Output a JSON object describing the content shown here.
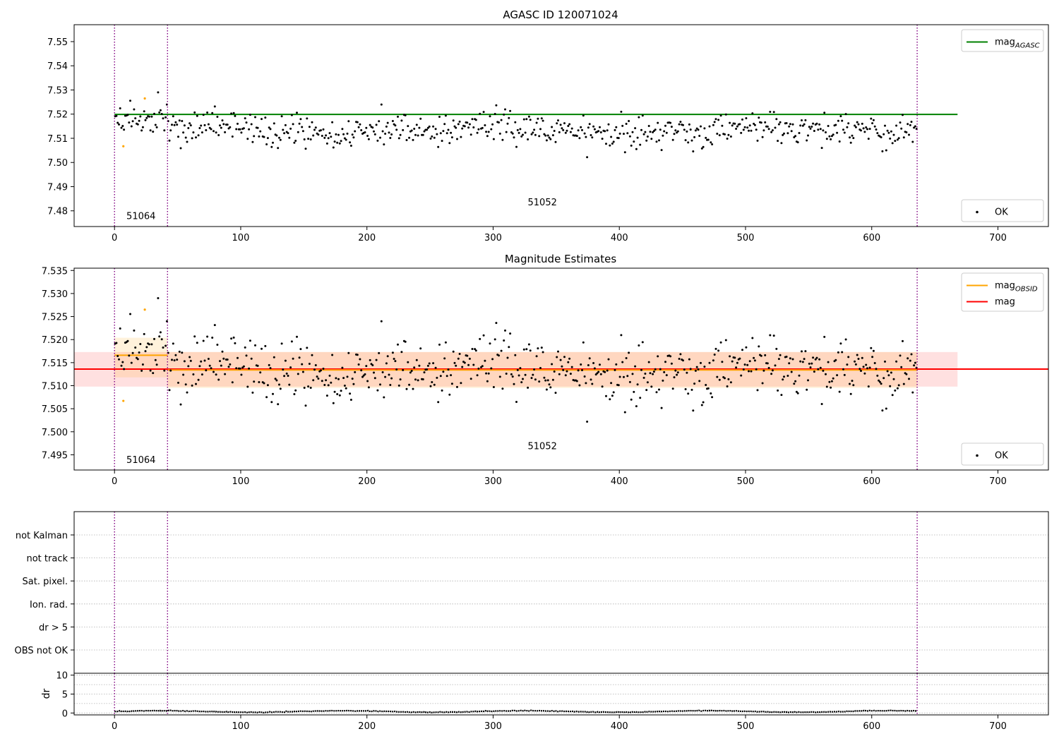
{
  "chart_data": [
    {
      "id": "agasc",
      "type": "scatter",
      "title": "AGASC ID 120071024",
      "xlabel": "",
      "ylabel": "",
      "xlim": [
        -32,
        740
      ],
      "ylim": [
        7.4735,
        7.557
      ],
      "xticks": [
        0,
        100,
        200,
        300,
        400,
        500,
        600,
        700
      ],
      "yticks": [
        7.48,
        7.49,
        7.5,
        7.51,
        7.52,
        7.53,
        7.54,
        7.55
      ],
      "y_tick_decimals": 2,
      "grid": false,
      "reference_lines": [
        {
          "name": "mag_AGASC",
          "y": 7.5199,
          "x_range": [
            0,
            668
          ],
          "color": "#008000"
        }
      ],
      "obsid_boundaries": [
        0,
        42,
        636
      ],
      "obsid_labels": [
        {
          "text": "51064",
          "x": 21,
          "y": 7.4765
        },
        {
          "text": "51052",
          "x": 339,
          "y": 7.4823
        }
      ],
      "point_groups": [
        {
          "name": "OK",
          "color": "#000000",
          "segments": [
            {
              "x0": 0,
              "x1": 42,
              "mean": 7.5167,
              "sd": 0.0045
            },
            {
              "x0": 42,
              "x1": 636,
              "mean": 7.5134,
              "sd": 0.0044
            }
          ]
        },
        {
          "name": "",
          "color": "#FFA500",
          "points": [
            [
              7,
              7.5067
            ],
            [
              24,
              7.5265
            ]
          ]
        }
      ],
      "legends": [
        {
          "position": "upper right",
          "entries": [
            {
              "kind": "line",
              "color": "#008000",
              "label": "mag",
              "sub": "AGASC"
            }
          ]
        },
        {
          "position": "lower right",
          "entries": [
            {
              "kind": "point",
              "color": "#000000",
              "label": "OK",
              "sub": ""
            }
          ]
        }
      ]
    },
    {
      "id": "estimates",
      "type": "scatter",
      "title": "Magnitude Estimates",
      "xlabel": "",
      "ylabel": "",
      "xlim": [
        -32,
        740
      ],
      "ylim": [
        7.4917,
        7.5355
      ],
      "xticks": [
        0,
        100,
        200,
        300,
        400,
        500,
        600,
        700
      ],
      "yticks": [
        7.495,
        7.5,
        7.505,
        7.51,
        7.515,
        7.52,
        7.525,
        7.53,
        7.535
      ],
      "y_tick_decimals": 3,
      "grid": false,
      "bands": [
        {
          "name": "mag",
          "x_range": [
            -32,
            668
          ],
          "low": 7.5098,
          "high": 7.5173,
          "color": "#FF0000",
          "opacity": 0.12
        },
        {
          "name": "mag_OBSID 51064",
          "x_range": [
            0,
            42
          ],
          "low": 7.5118,
          "high": 7.5204,
          "color": "#FFA500",
          "opacity": 0.14
        },
        {
          "name": "mag_OBSID 51052",
          "x_range": [
            42,
            636
          ],
          "low": 7.5095,
          "high": 7.5173,
          "color": "#FFA500",
          "opacity": 0.14
        }
      ],
      "reference_lines": [
        {
          "name": "mag",
          "y": 7.5136,
          "x_range": [
            -32,
            740
          ],
          "color": "#FF0000"
        },
        {
          "name": "mag_OBSID 51064",
          "y": 7.5166,
          "x_range": [
            0,
            42
          ],
          "color": "#FFA500"
        },
        {
          "name": "mag_OBSID 51052",
          "y": 7.5134,
          "x_range": [
            42,
            636
          ],
          "color": "#FFA500"
        }
      ],
      "obsid_boundaries": [
        0,
        42,
        636
      ],
      "obsid_labels": [
        {
          "text": "51064",
          "x": 21,
          "y": 7.4932
        },
        {
          "text": "51052",
          "x": 339,
          "y": 7.4962
        }
      ],
      "point_groups": [
        {
          "name": "OK",
          "color": "#000000",
          "segments": [
            {
              "x0": 0,
              "x1": 42,
              "mean": 7.5167,
              "sd": 0.0045
            },
            {
              "x0": 42,
              "x1": 636,
              "mean": 7.5134,
              "sd": 0.0044
            }
          ]
        },
        {
          "name": "",
          "color": "#FFA500",
          "points": [
            [
              7,
              7.5067
            ],
            [
              24,
              7.5265
            ]
          ]
        }
      ],
      "legends": [
        {
          "position": "upper right",
          "entries": [
            {
              "kind": "line",
              "color": "#FFA500",
              "label": "mag",
              "sub": "OBSID"
            },
            {
              "kind": "line",
              "color": "#FF0000",
              "label": "mag",
              "sub": ""
            }
          ]
        },
        {
          "position": "lower right",
          "entries": [
            {
              "kind": "point",
              "color": "#000000",
              "label": "OK",
              "sub": ""
            }
          ]
        }
      ]
    },
    {
      "id": "flags",
      "type": "scatter",
      "title": "",
      "categories": [
        "not Kalman",
        "not track",
        "Sat. pixel.",
        "Ion. rad.",
        "dr > 5",
        "OBS not OK"
      ],
      "xlim": [
        -32,
        740
      ],
      "grid": true,
      "obsid_boundaries": [
        0,
        42,
        636
      ],
      "points": []
    },
    {
      "id": "dr",
      "type": "line",
      "title": "",
      "ylabel": "dr",
      "xlim": [
        -32,
        740
      ],
      "ylim": [
        -0.5,
        10.5
      ],
      "xticks": [
        0,
        100,
        200,
        300,
        400,
        500,
        600,
        700
      ],
      "yticks": [
        0,
        5,
        10
      ],
      "grid": true,
      "obsid_boundaries": [
        0,
        42,
        636
      ],
      "series": [
        {
          "name": "",
          "color": "#000000",
          "x_range": [
            0,
            636
          ],
          "mean": 0.4,
          "amplitude": 0.25
        }
      ]
    }
  ]
}
